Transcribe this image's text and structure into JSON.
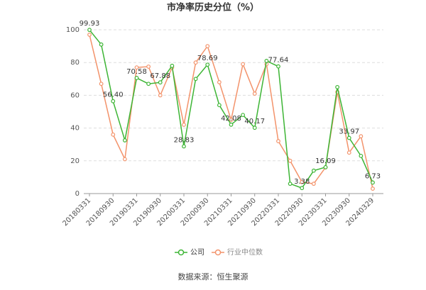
{
  "chart_data": {
    "type": "line",
    "title": "市净率历史分位（%）",
    "categories": [
      "20180331",
      null,
      "20180930",
      null,
      "20190331",
      null,
      "20190930",
      null,
      "20200331",
      null,
      "20200930",
      null,
      "20210331",
      null,
      "20210930",
      null,
      "20220331",
      null,
      "20220930",
      null,
      "20230331",
      null,
      "20230930",
      null,
      "20240329"
    ],
    "series": [
      {
        "name": "公司",
        "color": "#3db535",
        "values": [
          99.93,
          91,
          56.4,
          32.5,
          70.58,
          67,
          67.88,
          78,
          28.83,
          70,
          78.69,
          54,
          42.08,
          48,
          40.17,
          81,
          77.64,
          6,
          3.38,
          14,
          16.09,
          65,
          33.97,
          23,
          6.73
        ],
        "value_labels": [
          "99.93",
          null,
          "56.40",
          null,
          "70.58",
          null,
          "67.88",
          null,
          "28.83",
          null,
          "78.69",
          null,
          "42.08",
          null,
          "40.17",
          null,
          "77.64",
          null,
          "3.38",
          null,
          "16.09",
          null,
          "33.97",
          null,
          "6.73"
        ]
      },
      {
        "name": "行业中位数",
        "color": "#f3936b",
        "values": [
          97,
          67,
          36,
          21,
          77,
          77.5,
          60,
          77,
          42,
          80,
          90,
          68,
          45,
          79,
          61,
          79,
          32,
          20,
          7,
          6,
          16,
          62,
          25,
          35,
          3
        ]
      }
    ],
    "ylim": [
      0,
      100
    ],
    "yticks": [
      0,
      20,
      40,
      60,
      80,
      100
    ],
    "grid": true,
    "source": "数据来源：恒生聚源"
  }
}
